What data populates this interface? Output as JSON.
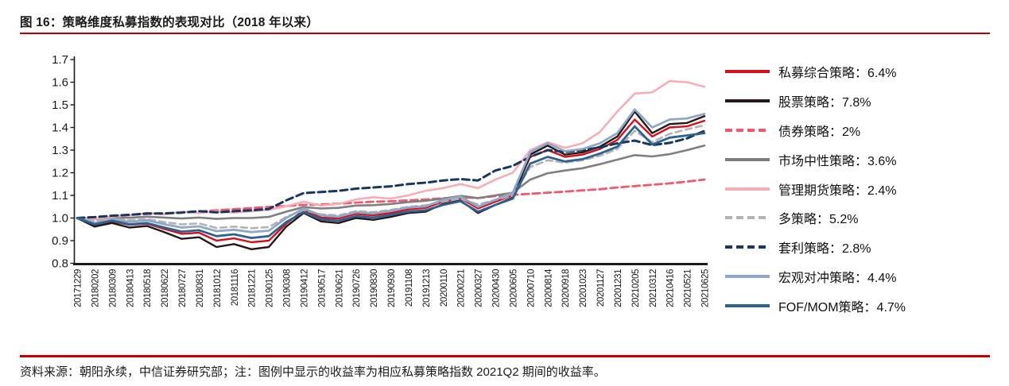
{
  "page": {
    "title": "图 16：策略维度私募指数的表现对比（2018 年以来）",
    "footer": "资料来源：朝阳永续，中信证券研究部；注：图例中显示的收益率为相应私募策略指数 2021Q2 期间的收益率。",
    "accent_color": "#C00000",
    "text_color": "#1A1A1A"
  },
  "chart_data": {
    "type": "line",
    "title": "策略维度私募指数的表现对比（2018 年以来）",
    "xlabel": "",
    "ylabel": "",
    "ylim": [
      0.8,
      1.7
    ],
    "ytick_step": 0.1,
    "grid": false,
    "legend_position": "right",
    "x_labels": [
      "20171229",
      "20180202",
      "20180309",
      "20180413",
      "20180518",
      "20180622",
      "20180727",
      "20180831",
      "20181012",
      "20181116",
      "20181221",
      "20190125",
      "20190308",
      "20190412",
      "20190517",
      "20190621",
      "20190726",
      "20190830",
      "20190930",
      "20191108",
      "20191213",
      "20200110",
      "20200221",
      "20200327",
      "20200430",
      "20200605",
      "20200710",
      "20200814",
      "20200918",
      "20201023",
      "20201127",
      "20201231",
      "20210205",
      "20210312",
      "20210416",
      "20210521",
      "20210625"
    ],
    "series": [
      {
        "name": "私募综合策略",
        "return_2021q2": "6.4%",
        "label": "私募综合策略：6.4%",
        "color": "#D5101E",
        "dash": "",
        "width": 2.4,
        "values": [
          1.0,
          0.97,
          0.985,
          0.97,
          0.975,
          0.952,
          0.93,
          0.935,
          0.9,
          0.91,
          0.893,
          0.9,
          0.975,
          1.035,
          1.002,
          0.998,
          1.018,
          1.012,
          1.022,
          1.038,
          1.045,
          1.072,
          1.088,
          1.042,
          1.072,
          1.1,
          1.27,
          1.3,
          1.27,
          1.28,
          1.305,
          1.345,
          1.435,
          1.36,
          1.4,
          1.405,
          1.43
        ]
      },
      {
        "name": "股票策略",
        "return_2021q2": "7.8%",
        "label": "股票策略：7.8%",
        "color": "#231815",
        "dash": "",
        "width": 2.4,
        "values": [
          1.0,
          0.962,
          0.978,
          0.958,
          0.965,
          0.938,
          0.908,
          0.915,
          0.872,
          0.885,
          0.862,
          0.872,
          0.962,
          1.022,
          0.985,
          0.978,
          1.0,
          0.992,
          1.005,
          1.022,
          1.028,
          1.062,
          1.078,
          1.022,
          1.058,
          1.09,
          1.28,
          1.32,
          1.28,
          1.29,
          1.315,
          1.36,
          1.47,
          1.375,
          1.415,
          1.42,
          1.45
        ]
      },
      {
        "name": "债券策略",
        "return_2021q2": "2%",
        "label": "债券策略：2%",
        "color": "#F4566E",
        "dash": "9 5",
        "width": 2.8,
        "values": [
          1.0,
          1.004,
          1.009,
          1.014,
          1.018,
          1.021,
          1.025,
          1.029,
          1.034,
          1.039,
          1.044,
          1.049,
          1.053,
          1.058,
          1.06,
          1.063,
          1.068,
          1.072,
          1.074,
          1.078,
          1.082,
          1.087,
          1.092,
          1.088,
          1.097,
          1.102,
          1.107,
          1.112,
          1.117,
          1.122,
          1.127,
          1.135,
          1.141,
          1.147,
          1.153,
          1.161,
          1.17
        ]
      },
      {
        "name": "市场中性策略",
        "return_2021q2": "3.6%",
        "label": "市场中性策略：3.6%",
        "color": "#7F7F7F",
        "dash": "",
        "width": 2.6,
        "values": [
          1.0,
          0.995,
          1.002,
          1.001,
          1.006,
          1.002,
          0.998,
          1.002,
          0.996,
          1.0,
          1.0,
          1.005,
          1.028,
          1.048,
          1.042,
          1.045,
          1.055,
          1.057,
          1.062,
          1.07,
          1.076,
          1.086,
          1.098,
          1.088,
          1.1,
          1.112,
          1.17,
          1.198,
          1.21,
          1.22,
          1.238,
          1.258,
          1.278,
          1.272,
          1.282,
          1.3,
          1.32
        ]
      },
      {
        "name": "管理期货策略",
        "return_2021q2": "2.4%",
        "label": "管理期货策略：2.4%",
        "color": "#F6ADB5",
        "dash": "",
        "width": 2.6,
        "values": [
          1.0,
          0.996,
          1.006,
          1.012,
          1.022,
          1.016,
          1.028,
          1.022,
          1.03,
          1.024,
          1.03,
          1.036,
          1.052,
          1.072,
          1.055,
          1.062,
          1.082,
          1.092,
          1.086,
          1.1,
          1.12,
          1.132,
          1.15,
          1.132,
          1.17,
          1.2,
          1.3,
          1.335,
          1.31,
          1.33,
          1.38,
          1.47,
          1.55,
          1.555,
          1.605,
          1.6,
          1.58
        ]
      },
      {
        "name": "多策略",
        "return_2021q2": "5.2%",
        "label": "多策略：5.2%",
        "color": "#B3B3B3",
        "dash": "8 5",
        "width": 2.6,
        "values": [
          1.0,
          0.986,
          0.996,
          0.99,
          0.995,
          0.982,
          0.972,
          0.976,
          0.956,
          0.962,
          0.955,
          0.96,
          1.005,
          1.035,
          1.016,
          1.012,
          1.03,
          1.026,
          1.036,
          1.05,
          1.056,
          1.074,
          1.086,
          1.06,
          1.08,
          1.1,
          1.225,
          1.255,
          1.245,
          1.255,
          1.275,
          1.305,
          1.385,
          1.335,
          1.372,
          1.392,
          1.41
        ]
      },
      {
        "name": "套利策略",
        "return_2021q2": "2.8%",
        "label": "套利策略：2.8%",
        "color": "#17375E",
        "dash": "9 5",
        "width": 3.0,
        "values": [
          1.0,
          1.004,
          1.01,
          1.014,
          1.02,
          1.02,
          1.024,
          1.03,
          1.025,
          1.03,
          1.034,
          1.04,
          1.078,
          1.11,
          1.115,
          1.12,
          1.13,
          1.135,
          1.14,
          1.15,
          1.156,
          1.166,
          1.172,
          1.166,
          1.21,
          1.23,
          1.27,
          1.3,
          1.292,
          1.3,
          1.312,
          1.33,
          1.342,
          1.322,
          1.332,
          1.352,
          1.385
        ]
      },
      {
        "name": "宏观对冲策略",
        "return_2021q2": "4.4%",
        "label": "宏观对冲策略：4.4%",
        "color": "#8FA8C6",
        "dash": "",
        "width": 2.8,
        "values": [
          1.0,
          0.978,
          0.993,
          0.983,
          0.99,
          0.973,
          0.958,
          0.963,
          0.942,
          0.948,
          0.938,
          0.944,
          1.0,
          1.042,
          1.012,
          1.006,
          1.026,
          1.02,
          1.032,
          1.046,
          1.052,
          1.08,
          1.095,
          1.05,
          1.08,
          1.112,
          1.29,
          1.33,
          1.295,
          1.305,
          1.33,
          1.375,
          1.48,
          1.4,
          1.435,
          1.44,
          1.46
        ]
      },
      {
        "name": "FOF/MOM策略",
        "return_2021q2": "4.7%",
        "label": "FOF/MOM策略：4.7%",
        "color": "#2E6090",
        "dash": "",
        "width": 2.8,
        "values": [
          1.0,
          0.972,
          0.988,
          0.972,
          0.978,
          0.958,
          0.94,
          0.946,
          0.92,
          0.928,
          0.912,
          0.92,
          0.982,
          1.026,
          0.994,
          0.988,
          1.008,
          1.002,
          1.014,
          1.028,
          1.034,
          1.058,
          1.074,
          1.028,
          1.058,
          1.086,
          1.24,
          1.27,
          1.25,
          1.26,
          1.285,
          1.315,
          1.405,
          1.325,
          1.355,
          1.365,
          1.375
        ]
      }
    ]
  }
}
